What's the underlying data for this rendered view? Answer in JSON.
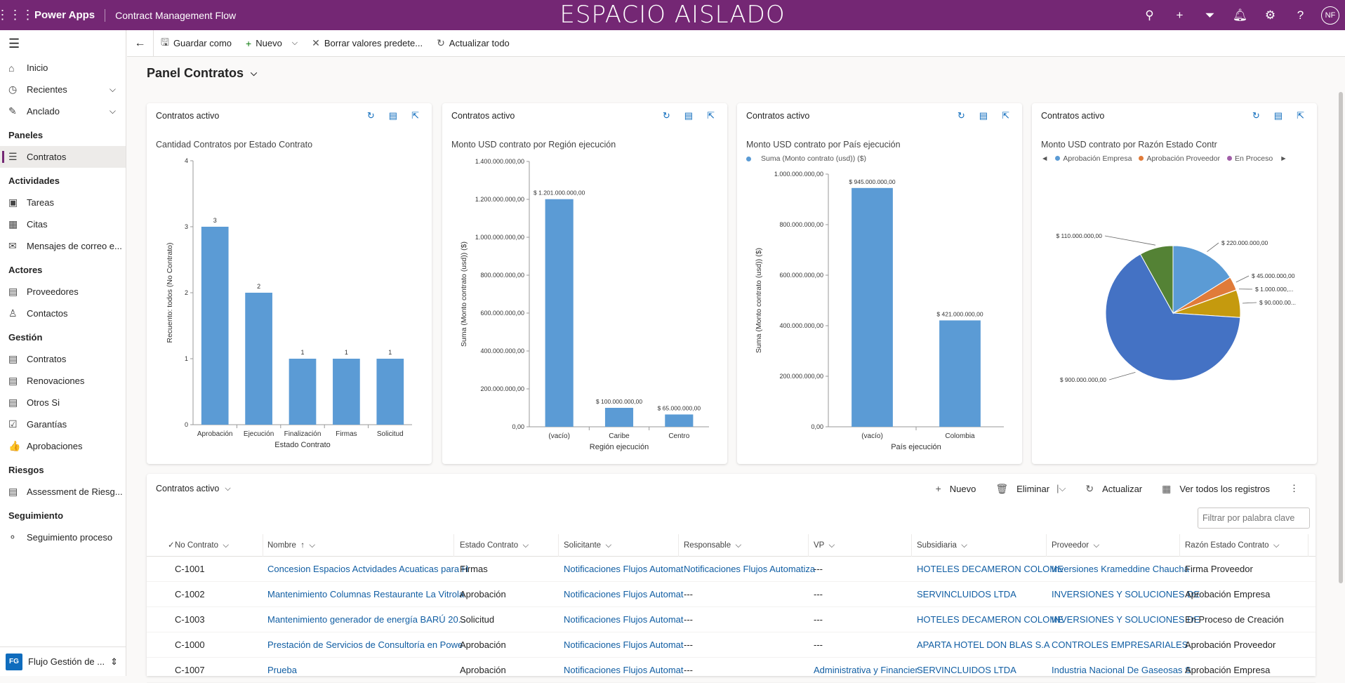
{
  "topbar": {
    "brand": "Power Apps",
    "app_name": "Contract Management Flow",
    "sandbox_label": "ESPACIO AISLADO",
    "avatar": "NF"
  },
  "sidebar": {
    "items": [
      {
        "label": "Inicio",
        "icon": "home-icon",
        "glyph": "⌂"
      },
      {
        "label": "Recientes",
        "icon": "clock-icon",
        "glyph": "◷",
        "chevron": true
      },
      {
        "label": "Anclado",
        "icon": "pin-icon",
        "glyph": "✎",
        "chevron": true
      }
    ],
    "groups": [
      {
        "title": "Paneles",
        "items": [
          {
            "label": "Contratos",
            "glyph": "☰",
            "active": true
          }
        ]
      },
      {
        "title": "Actividades",
        "items": [
          {
            "label": "Tareas",
            "glyph": "▣"
          },
          {
            "label": "Citas",
            "glyph": "▦"
          },
          {
            "label": "Mensajes de correo e...",
            "glyph": "✉"
          }
        ]
      },
      {
        "title": "Actores",
        "items": [
          {
            "label": "Proveedores",
            "glyph": "▤"
          },
          {
            "label": "Contactos",
            "glyph": "♙"
          }
        ]
      },
      {
        "title": "Gestión",
        "items": [
          {
            "label": "Contratos",
            "glyph": "▤"
          },
          {
            "label": "Renovaciones",
            "glyph": "▤"
          },
          {
            "label": "Otros Si",
            "glyph": "▤"
          },
          {
            "label": "Garantías",
            "glyph": "☑"
          },
          {
            "label": "Aprobaciones",
            "glyph": "👍"
          }
        ]
      },
      {
        "title": "Riesgos",
        "items": [
          {
            "label": "Assessment de Riesg...",
            "glyph": "▤"
          }
        ]
      },
      {
        "title": "Seguimiento",
        "items": [
          {
            "label": "Seguimiento proceso",
            "glyph": "⚬"
          }
        ]
      }
    ],
    "footer": {
      "badge": "FG",
      "label": "Flujo Gestión de ..."
    }
  },
  "cmdbar": {
    "save_as": "Guardar como",
    "new": "Nuevo",
    "clear": "Borrar valores predete...",
    "refresh_all": "Actualizar todo"
  },
  "dashboard": {
    "title": "Panel Contratos"
  },
  "cards": [
    {
      "header": "Contratos activo",
      "title": "Cantidad Contratos por Estado Contrato"
    },
    {
      "header": "Contratos activo",
      "title": "Monto USD contrato por Región ejecución"
    },
    {
      "header": "Contratos activo",
      "title": "Monto USD contrato por País ejecución",
      "legend": "Suma (Monto contrato (usd)) ($)"
    },
    {
      "header": "Contratos activo",
      "title": "Monto USD contrato por Razón Estado Contr",
      "legend": [
        "Aprobación Empresa",
        "Aprobación Proveedor",
        "En Proceso"
      ]
    }
  ],
  "chart_data": [
    {
      "type": "bar",
      "title": "Cantidad Contratos por Estado Contrato",
      "categories": [
        "Aprobación",
        "Ejecución",
        "Finalización",
        "Firmas",
        "Solicitud"
      ],
      "values": [
        3,
        2,
        1,
        1,
        1
      ],
      "xlabel": "Estado Contrato",
      "ylabel": "Recuento: todos (No Contrato)",
      "ylim": [
        0,
        4
      ],
      "yticks": [
        "0",
        "1",
        "2",
        "3",
        "4"
      ],
      "labels": [
        "3",
        "2",
        "1",
        "1",
        "1"
      ],
      "color": "#5b9bd5"
    },
    {
      "type": "bar",
      "title": "Monto USD contrato por Región ejecución",
      "categories": [
        "(vacío)",
        "Caribe",
        "Centro"
      ],
      "values": [
        1201000000,
        100000000,
        65000000
      ],
      "xlabel": "Región ejecución",
      "ylabel": "Suma (Monto contrato (usd)) ($)",
      "ylim": [
        0,
        1400000000
      ],
      "yticks": [
        "0,00",
        "200.000.000,00",
        "400.000.000,00",
        "600.000.000,00",
        "800.000.000,00",
        "1.000.000.000,00",
        "1.200.000.000,00",
        "1.400.000.000,00"
      ],
      "labels": [
        "$ 1.201.000.000,00",
        "$ 100.000.000,00",
        "$ 65.000.000,00"
      ],
      "color": "#5b9bd5"
    },
    {
      "type": "bar",
      "title": "Monto USD contrato por País ejecución",
      "categories": [
        "(vacío)",
        "Colombia"
      ],
      "values": [
        945000000,
        421000000
      ],
      "xlabel": "País ejecución",
      "ylabel": "Suma (Monto contrato (usd)) ($)",
      "ylim": [
        0,
        1000000000
      ],
      "yticks": [
        "0,00",
        "200.000.000,00",
        "400.000.000,00",
        "600.000.000,00",
        "800.000.000,00",
        "1.000.000.000,00"
      ],
      "labels": [
        "$ 945.000.000,00",
        "$ 421.000.000,00"
      ],
      "color": "#5b9bd5"
    },
    {
      "type": "pie",
      "title": "Monto USD contrato por Razón Estado Contr",
      "slices": [
        {
          "value": 220000000,
          "label": "$ 220.000.000,00",
          "color": "#5b9bd5"
        },
        {
          "value": 45000000,
          "label": "$ 45.000.000,00",
          "color": "#e07b39"
        },
        {
          "value": 1000000,
          "label": "$ 1.000.000,...",
          "color": "#a5a5a5"
        },
        {
          "value": 90000000,
          "label": "$ 90.000.00...",
          "color": "#c59a0e"
        },
        {
          "value": 900000000,
          "label": "$ 900.000.000,00",
          "color": "#4472c4"
        },
        {
          "value": 110000000,
          "label": "$ 110.000.000,00",
          "color": "#548235"
        }
      ],
      "legend_colors": [
        "#5b9bd5",
        "#e07b39",
        "#a15ea8"
      ]
    }
  ],
  "grid": {
    "header": "Contratos activo",
    "cmds": {
      "new": "Nuevo",
      "delete": "Eliminar",
      "refresh": "Actualizar",
      "view_all": "Ver todos los registros"
    },
    "filter_placeholder": "Filtrar por palabra clave",
    "columns": [
      "No Contrato",
      "Nombre",
      "Estado Contrato",
      "Solicitante",
      "Responsable",
      "VP",
      "Subsidiaria",
      "Proveedor",
      "Razón Estado Contrato"
    ],
    "rows": [
      [
        "C-1001",
        "Concesion Espacios Actvidades Acuaticas para H",
        "Firmas",
        "Notificaciones Flujos Automat",
        "Notificaciones Flujos Automatiza",
        "---",
        "HOTELES DECAMERON COLOME",
        "Inversiones Krameddine Chaucha",
        "Firma Proveedor"
      ],
      [
        "C-1002",
        "Mantenimiento Columnas Restaurante La Vitrola",
        "Aprobación",
        "Notificaciones Flujos Automat",
        "---",
        "---",
        "SERVINCLUIDOS LTDA",
        "INVERSIONES Y SOLUCIONES DE",
        "Aprobación Empresa"
      ],
      [
        "C-1003",
        "Mantenimiento generador de energía BARÚ 20...",
        "Solicitud",
        "Notificaciones Flujos Automat",
        "---",
        "---",
        "HOTELES DECAMERON COLOME",
        "INVERSIONES Y SOLUCIONES DE",
        "En Proceso de Creación"
      ],
      [
        "C-1000",
        "Prestación de Servicios de Consultoría en Powe",
        "Aprobación",
        "Notificaciones Flujos Automat",
        "---",
        "---",
        "APARTA HOTEL DON BLAS S.A",
        "CONTROLES EMPRESARIALES",
        "Aprobación Proveedor"
      ],
      [
        "C-1007",
        "Prueba",
        "Aprobación",
        "Notificaciones Flujos Automat",
        "---",
        "Administrativa y Financier",
        "SERVINCLUIDOS LTDA",
        "Industria Nacional De Gaseosas S",
        "Aprobación Empresa"
      ]
    ]
  }
}
